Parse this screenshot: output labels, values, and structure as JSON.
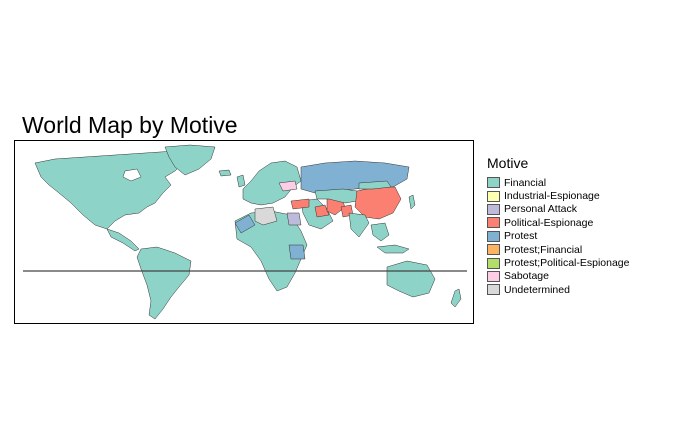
{
  "title": "World Map by Motive",
  "legend": {
    "title": "Motive",
    "items": [
      {
        "label": "Financial",
        "color": "#8dd3c7"
      },
      {
        "label": "Industrial-Espionage",
        "color": "#ffffb3"
      },
      {
        "label": "Personal Attack",
        "color": "#bebada"
      },
      {
        "label": "Political-Espionage",
        "color": "#fb8072"
      },
      {
        "label": "Protest",
        "color": "#80b1d3"
      },
      {
        "label": "Protest;Financial",
        "color": "#fdb462"
      },
      {
        "label": "Protest;Political-Espionage",
        "color": "#b3de69"
      },
      {
        "label": "Sabotage",
        "color": "#fccde5"
      },
      {
        "label": "Undetermined",
        "color": "#d9d9d9"
      }
    ]
  },
  "map": {
    "projection": "equirectangular",
    "country_motives": {
      "North America": "Financial",
      "Greenland": "Financial",
      "South America": "Financial",
      "Australia": "Financial",
      "Europe": "Financial",
      "Africa": "Financial",
      "Russia": "Protest",
      "Iran": "Political-Espionage",
      "China": "Political-Espionage",
      "Iraq": "Political-Espionage",
      "Pakistan": "Political-Espionage",
      "Ukraine": "Sabotage",
      "Morocco": "Protest",
      "Sudan": "Protest",
      "Egypt": "Personal Attack",
      "Algeria": "Undetermined",
      "Turkey": "Political-Espionage",
      "India": "Financial",
      "Japan": "Financial"
    }
  }
}
